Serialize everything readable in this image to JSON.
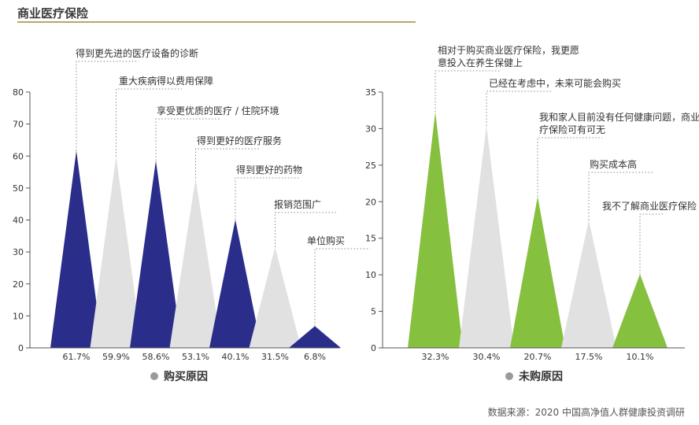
{
  "page": {
    "title": "商业医疗保险",
    "source": "数据来源：2020 中国高净值人群健康投资调研"
  },
  "colors": {
    "navy": "#2a2d8a",
    "grey": "#e1e1e1",
    "green": "#86c03f",
    "axis": "#555555",
    "title_rule": "#b9a76a",
    "legend_dot": "#9a9a9a"
  },
  "chart_data": [
    {
      "type": "bar",
      "title": "购买原因",
      "ylim": [
        0,
        80
      ],
      "yticks": [
        0,
        10,
        20,
        30,
        40,
        50,
        60,
        70,
        80
      ],
      "value_labels": [
        "61.7%",
        "59.9%",
        "58.6%",
        "53.1%",
        "40.1%",
        "31.5%",
        "6.8%"
      ],
      "categories": [
        "得到更先进的医疗设备的诊断",
        "重大疾病得以费用保障",
        "享受更优质的医疗 / 住院环境",
        "得到更好的医疗服务",
        "得到更好的药物",
        "报销范围广",
        "单位购买"
      ],
      "values": [
        61.7,
        59.9,
        58.6,
        53.1,
        40.1,
        31.5,
        6.8
      ],
      "colors": [
        "#2a2d8a",
        "#e1e1e1",
        "#2a2d8a",
        "#e1e1e1",
        "#2a2d8a",
        "#e1e1e1",
        "#2a2d8a"
      ],
      "legend": "购买原因"
    },
    {
      "type": "bar",
      "title": "未购原因",
      "ylim": [
        0,
        35
      ],
      "yticks": [
        0,
        5,
        10,
        15,
        20,
        25,
        30,
        35
      ],
      "value_labels": [
        "32.3%",
        "30.4%",
        "20.7%",
        "17.5%",
        "10.1%"
      ],
      "categories": [
        "相对于购买商业医疗保险，我更愿意投入在养生保健上",
        "已经在考虑中，未来可能会购买",
        "我和家人目前没有任何健康问题，商业医疗保险可有可无",
        "购买成本高",
        "我不了解商业医疗保险"
      ],
      "values": [
        32.3,
        30.4,
        20.7,
        17.5,
        10.1
      ],
      "colors": [
        "#86c03f",
        "#e1e1e1",
        "#86c03f",
        "#e1e1e1",
        "#86c03f"
      ],
      "legend": "未购原因"
    }
  ]
}
